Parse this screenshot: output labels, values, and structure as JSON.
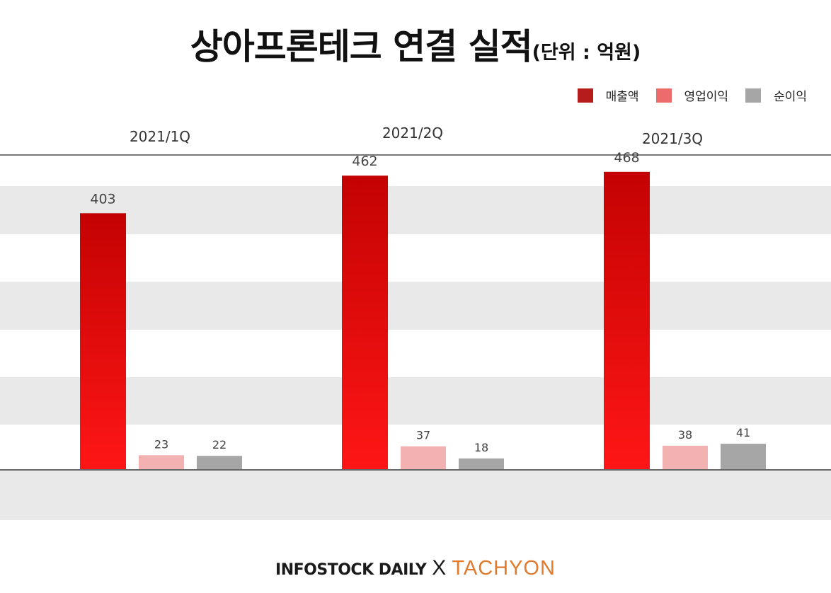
{
  "title": "상아프론테크 연결 실적",
  "unit": "(단위 : 억원)",
  "legend": [
    {
      "label": "매출액",
      "color": "#b71c1c"
    },
    {
      "label": "영업이익",
      "color": "#ee6b6b"
    },
    {
      "label": "순이익",
      "color": "#a6a6a6"
    }
  ],
  "footer": {
    "brand1": "INFOSTOCK DAILY",
    "separator": "X",
    "brand2": "TACHYON"
  },
  "chart_data": {
    "type": "bar",
    "categories": [
      "2021/1Q",
      "2021/2Q",
      "2021/3Q"
    ],
    "series": [
      {
        "name": "매출액",
        "values": [
          403,
          462,
          468
        ],
        "color": "#d40a0a"
      },
      {
        "name": "영업이익",
        "values": [
          23,
          37,
          38
        ],
        "color": "#f4b1b1"
      },
      {
        "name": "순이익",
        "values": [
          22,
          18,
          41
        ],
        "color": "#a6a6a6"
      }
    ],
    "ylim": [
      0,
      500
    ],
    "legend_position": "top-right",
    "background": "alternating horizontal gray bands"
  }
}
